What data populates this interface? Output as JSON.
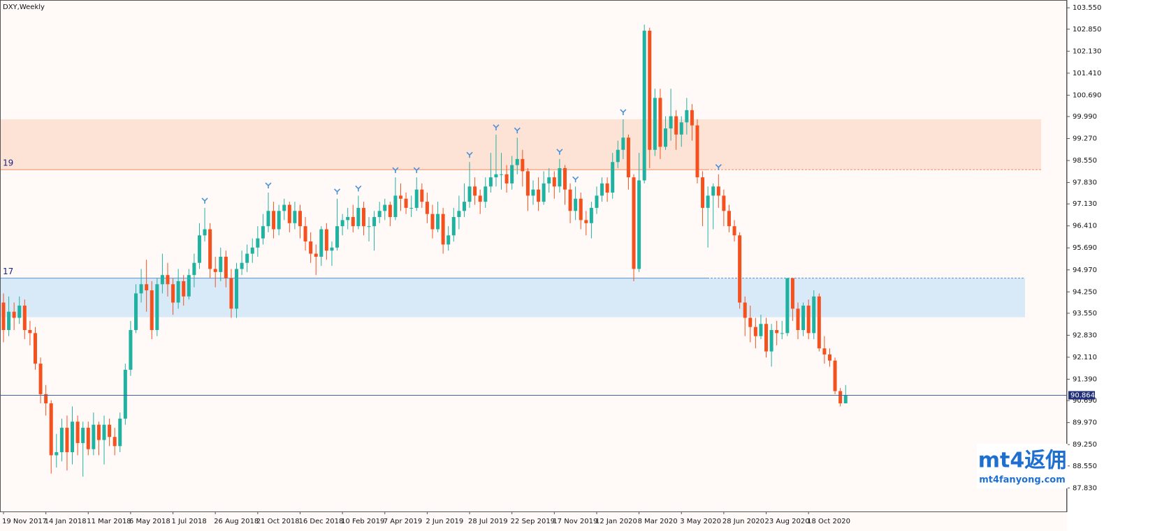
{
  "chart_data": {
    "type": "candlestick",
    "title": "DXY,Weekly",
    "categories": [
      "19 Nov 2017",
      null,
      null,
      null,
      null,
      null,
      null,
      null,
      "14 Jan 2018",
      null,
      null,
      null,
      null,
      null,
      null,
      null,
      "11 Mar 2018",
      null,
      null,
      null,
      null,
      null,
      null,
      null,
      "6 May 2018",
      null,
      null,
      null,
      null,
      null,
      null,
      null,
      "1 Jul 2018",
      null,
      null,
      null,
      null,
      null,
      null,
      null,
      "26 Aug 2018",
      null,
      null,
      null,
      null,
      null,
      null,
      null,
      "21 Oct 2018",
      null,
      null,
      null,
      null,
      null,
      null,
      null,
      "16 Dec 2018",
      null,
      null,
      null,
      null,
      null,
      null,
      null,
      "10 Feb 2019",
      null,
      null,
      null,
      null,
      null,
      null,
      null,
      "7 Apr 2019",
      null,
      null,
      null,
      null,
      null,
      null,
      null,
      "2 Jun 2019",
      null,
      null,
      null,
      null,
      null,
      null,
      null,
      "28 Jul 2019",
      null,
      null,
      null,
      null,
      null,
      null,
      null,
      "22 Sep 2019",
      null,
      null,
      null,
      null,
      null,
      null,
      null,
      "17 Nov 2019",
      null,
      null,
      null,
      null,
      null,
      null,
      null,
      "12 Jan 2020",
      null,
      null,
      null,
      null,
      null,
      null,
      null,
      "8 Mar 2020",
      null,
      null,
      null,
      null,
      null,
      null,
      null,
      "3 May 2020",
      null,
      null,
      null,
      null,
      null,
      null,
      null,
      "28 Jun 2020",
      null,
      null,
      null,
      null,
      null,
      null,
      null,
      "23 Aug 2020",
      null,
      null,
      null,
      null,
      null,
      null,
      null,
      "18 Oct 2020",
      null,
      null,
      null,
      null,
      null,
      null,
      null
    ],
    "open": [
      93.9,
      93.0,
      93.6,
      93.4,
      93.8,
      93.0,
      92.9,
      91.9,
      90.9,
      90.6,
      88.9,
      89.0,
      89.8,
      89.0,
      90.0,
      89.3,
      89.8,
      89.1,
      89.9,
      89.4,
      89.9,
      89.5,
      89.2,
      90.1,
      91.7,
      93.0,
      94.2,
      94.5,
      94.3,
      93.0,
      94.5,
      94.8,
      94.5,
      93.9,
      94.6,
      94.1,
      94.8,
      95.2,
      96.1,
      96.3,
      95.0,
      94.9,
      95.4,
      94.7,
      93.7,
      95.0,
      95.2,
      95.5,
      95.7,
      96.0,
      96.4,
      96.9,
      96.3,
      96.9,
      97.1,
      96.5,
      96.9,
      96.4,
      95.9,
      95.5,
      95.4,
      96.3,
      95.6,
      95.7,
      96.4,
      96.6,
      96.7,
      96.4,
      97.0,
      96.4,
      96.4,
      96.7,
      96.9,
      97.1,
      96.7,
      97.4,
      97.3,
      97.0,
      97.0,
      97.6,
      97.2,
      96.8,
      96.3,
      96.8,
      95.8,
      96.1,
      96.7,
      96.9,
      97.2,
      97.7,
      97.4,
      97.2,
      97.7,
      98.0,
      98.1,
      98.1,
      97.8,
      98.4,
      98.6,
      98.2,
      97.4,
      97.6,
      97.2,
      97.8,
      98.0,
      97.7,
      98.3,
      97.6,
      96.9,
      97.3,
      96.6,
      96.5,
      97.0,
      97.4,
      97.8,
      97.5,
      98.5,
      98.9,
      99.3,
      98.0,
      95.0,
      97.9,
      102.8,
      98.9,
      100.6,
      99.0,
      99.6,
      100.0,
      99.4,
      99.8,
      100.2,
      99.7,
      98.0,
      97.0,
      97.4,
      97.7,
      97.4,
      96.9,
      96.4,
      96.1,
      93.9,
      93.4,
      93.1,
      92.8,
      93.2,
      92.3,
      93.0,
      92.9,
      92.9,
      94.7,
      93.7,
      93.0,
      93.8,
      92.9,
      94.1,
      92.4,
      92.2,
      92.0,
      91.0,
      90.6
    ],
    "high": [
      94.2,
      94.1,
      93.9,
      94.1,
      94.0,
      93.3,
      93.1,
      92.1,
      91.2,
      90.7,
      89.6,
      90.1,
      90.2,
      90.5,
      90.2,
      90.0,
      90.0,
      90.3,
      90.0,
      90.2,
      90.1,
      89.8,
      90.3,
      91.9,
      93.3,
      94.5,
      95.0,
      95.3,
      94.6,
      94.7,
      95.5,
      95.2,
      94.7,
      95.0,
      94.8,
      95.0,
      95.5,
      96.5,
      97.0,
      96.5,
      95.4,
      95.7,
      95.6,
      95.0,
      95.2,
      95.6,
      95.8,
      96.0,
      96.4,
      96.8,
      97.5,
      97.2,
      97.1,
      97.3,
      97.2,
      97.2,
      97.1,
      96.7,
      96.2,
      95.8,
      96.4,
      96.5,
      95.9,
      97.3,
      96.8,
      97.0,
      97.1,
      97.4,
      97.2,
      96.7,
      96.9,
      97.2,
      97.3,
      97.2,
      98.0,
      97.8,
      97.5,
      97.4,
      98.0,
      97.8,
      97.5,
      97.1,
      97.2,
      97.0,
      96.4,
      97.0,
      97.4,
      97.8,
      98.5,
      98.0,
      97.6,
      98.0,
      98.8,
      99.4,
      98.8,
      98.4,
      98.7,
      99.3,
      98.9,
      98.3,
      97.9,
      98.0,
      98.2,
      98.3,
      98.2,
      98.6,
      98.4,
      97.8,
      97.7,
      97.5,
      96.9,
      97.2,
      97.7,
      98.0,
      98.0,
      98.8,
      99.2,
      99.9,
      99.4,
      98.1,
      98.8,
      103.0,
      102.9,
      100.9,
      100.9,
      100.0,
      100.9,
      100.2,
      100.0,
      100.6,
      100.4,
      99.9,
      98.2,
      97.7,
      97.8,
      98.1,
      97.6,
      97.1,
      96.6,
      96.2,
      94.1,
      93.8,
      93.4,
      93.5,
      93.4,
      93.2,
      93.3,
      93.3,
      94.7,
      94.7,
      93.9,
      93.9,
      94.0,
      94.3,
      94.2,
      92.8,
      92.4,
      92.1,
      91.1,
      91.2
    ],
    "low": [
      92.6,
      92.8,
      93.0,
      93.2,
      92.7,
      92.5,
      91.7,
      90.6,
      90.2,
      88.3,
      88.5,
      88.7,
      88.4,
      88.6,
      88.9,
      88.2,
      88.9,
      88.9,
      88.9,
      88.6,
      89.2,
      88.9,
      89.0,
      89.9,
      91.5,
      92.9,
      93.9,
      93.6,
      92.7,
      92.8,
      94.2,
      94.1,
      93.5,
      93.7,
      93.8,
      94.0,
      94.4,
      95.0,
      95.9,
      94.7,
      94.4,
      94.6,
      94.4,
      93.4,
      93.4,
      94.8,
      94.9,
      95.2,
      95.4,
      95.8,
      96.2,
      96.0,
      96.1,
      96.6,
      96.2,
      96.3,
      96.0,
      95.6,
      95.2,
      94.8,
      95.1,
      95.3,
      95.1,
      95.6,
      96.1,
      96.3,
      96.2,
      96.3,
      96.1,
      95.9,
      95.6,
      96.5,
      96.6,
      96.4,
      96.6,
      96.9,
      96.8,
      96.7,
      96.9,
      97.0,
      96.5,
      96.0,
      96.2,
      95.5,
      95.6,
      95.9,
      96.3,
      96.7,
      97.0,
      97.1,
      96.8,
      97.0,
      97.5,
      97.7,
      97.6,
      97.5,
      97.6,
      98.1,
      97.7,
      96.9,
      97.1,
      96.9,
      97.1,
      97.5,
      97.3,
      97.5,
      97.1,
      96.5,
      96.6,
      96.3,
      96.1,
      96.0,
      96.8,
      97.2,
      97.2,
      97.3,
      98.3,
      98.6,
      97.6,
      94.6,
      94.9,
      97.8,
      98.3,
      98.7,
      98.6,
      98.9,
      99.2,
      98.9,
      99.0,
      99.4,
      99.2,
      97.8,
      96.4,
      95.7,
      96.3,
      97.0,
      96.4,
      96.2,
      95.9,
      93.7,
      92.8,
      92.6,
      92.4,
      92.7,
      92.1,
      91.8,
      92.5,
      92.7,
      92.8,
      93.3,
      92.7,
      92.8,
      92.7,
      92.7,
      92.3,
      91.9,
      91.8,
      90.9,
      90.5,
      90.65
    ],
    "close": [
      93.0,
      93.6,
      93.4,
      93.8,
      93.0,
      92.9,
      91.9,
      90.9,
      90.6,
      88.9,
      89.0,
      89.8,
      89.0,
      90.0,
      89.3,
      89.8,
      89.1,
      89.9,
      89.4,
      89.9,
      89.5,
      89.2,
      90.1,
      91.7,
      93.0,
      94.2,
      94.5,
      94.3,
      93.0,
      94.5,
      94.8,
      94.5,
      93.9,
      94.6,
      94.1,
      94.8,
      95.2,
      96.1,
      96.3,
      95.0,
      94.9,
      95.4,
      94.7,
      93.7,
      95.0,
      95.2,
      95.5,
      95.7,
      96.0,
      96.4,
      96.9,
      96.3,
      96.9,
      97.1,
      96.5,
      96.9,
      96.4,
      95.9,
      95.5,
      95.4,
      96.3,
      95.6,
      95.7,
      96.4,
      96.6,
      96.7,
      96.4,
      97.0,
      96.4,
      96.4,
      96.7,
      96.9,
      97.1,
      96.7,
      97.4,
      97.3,
      97.0,
      97.0,
      97.6,
      97.2,
      96.8,
      96.3,
      96.8,
      95.8,
      96.1,
      96.7,
      96.9,
      97.2,
      97.7,
      97.4,
      97.2,
      97.7,
      98.0,
      98.1,
      98.1,
      97.8,
      98.4,
      98.6,
      98.2,
      97.4,
      97.6,
      97.2,
      97.8,
      98.0,
      97.7,
      98.3,
      97.6,
      96.9,
      97.3,
      96.6,
      96.5,
      97.0,
      97.4,
      97.8,
      97.5,
      98.5,
      98.9,
      99.3,
      98.0,
      95.0,
      97.9,
      102.8,
      98.9,
      100.6,
      99.0,
      99.6,
      100.0,
      99.4,
      99.8,
      100.2,
      99.7,
      98.0,
      97.0,
      97.4,
      97.7,
      97.4,
      96.9,
      96.4,
      96.1,
      93.9,
      93.4,
      93.1,
      92.8,
      93.2,
      92.3,
      93.0,
      92.9,
      92.9,
      94.7,
      93.7,
      93.0,
      93.8,
      92.9,
      94.1,
      92.4,
      92.2,
      92.0,
      91.0,
      90.6,
      90.864
    ],
    "up_color": "#20b2a0",
    "down_color": "#f4511e",
    "ylim": [
      87.06,
      103.76
    ],
    "yticks": [
      {
        "value": 103.55,
        "label": "103.550"
      },
      {
        "value": 102.85,
        "label": "102.850"
      },
      {
        "value": 102.13,
        "label": "102.130"
      },
      {
        "value": 101.41,
        "label": "101.410"
      },
      {
        "value": 100.69,
        "label": "100.690"
      },
      {
        "value": 99.99,
        "label": "99.990"
      },
      {
        "value": 99.27,
        "label": "99.270"
      },
      {
        "value": 98.55,
        "label": "98.550"
      },
      {
        "value": 97.83,
        "label": "97.830"
      },
      {
        "value": 97.13,
        "label": "97.130"
      },
      {
        "value": 96.41,
        "label": "96.410"
      },
      {
        "value": 95.69,
        "label": "95.690"
      },
      {
        "value": 94.97,
        "label": "94.970"
      },
      {
        "value": 94.25,
        "label": "94.250"
      },
      {
        "value": 93.55,
        "label": "93.550"
      },
      {
        "value": 92.83,
        "label": "92.830"
      },
      {
        "value": 92.11,
        "label": "92.110"
      },
      {
        "value": 91.39,
        "label": "91.390"
      },
      {
        "value": 90.69,
        "label": "90.690"
      },
      {
        "value": 89.97,
        "label": "89.970"
      },
      {
        "value": 89.25,
        "label": "89.250"
      },
      {
        "value": 88.55,
        "label": "88.550"
      },
      {
        "value": 87.83,
        "label": "87.830"
      }
    ],
    "fractal_up": [
      38,
      50,
      63,
      67,
      74,
      78,
      88,
      93,
      97,
      105,
      108,
      117,
      135
    ],
    "fractal_color": "#4a90d9",
    "zones": [
      {
        "label": "19",
        "level": 98.25,
        "edge": 99.9,
        "color": "#fce3d6",
        "line_color": "#f08a5d"
      },
      {
        "label": "17",
        "level": 94.7,
        "edge": 93.42,
        "color": "#d8e9f8",
        "line_color": "#5b8fd0"
      }
    ],
    "last_price": 90.864,
    "last_price_color": "#22307a"
  },
  "watermark": {
    "brand": "mt4返佣",
    "url": "mt4fanyong.com"
  }
}
